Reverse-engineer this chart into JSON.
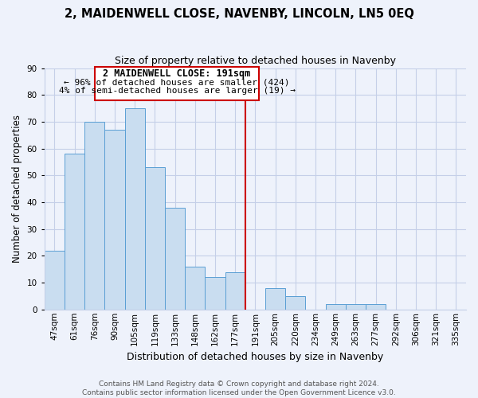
{
  "title": "2, MAIDENWELL CLOSE, NAVENBY, LINCOLN, LN5 0EQ",
  "subtitle": "Size of property relative to detached houses in Navenby",
  "xlabel": "Distribution of detached houses by size in Navenby",
  "ylabel": "Number of detached properties",
  "bar_labels": [
    "47sqm",
    "61sqm",
    "76sqm",
    "90sqm",
    "105sqm",
    "119sqm",
    "133sqm",
    "148sqm",
    "162sqm",
    "177sqm",
    "191sqm",
    "205sqm",
    "220sqm",
    "234sqm",
    "249sqm",
    "263sqm",
    "277sqm",
    "292sqm",
    "306sqm",
    "321sqm",
    "335sqm"
  ],
  "bar_heights": [
    22,
    58,
    70,
    67,
    75,
    53,
    38,
    16,
    12,
    14,
    0,
    8,
    5,
    0,
    2,
    2,
    2,
    0,
    0,
    0,
    0
  ],
  "bar_color": "#c9ddf0",
  "bar_edge_color": "#5a9fd4",
  "highlight_line_color": "#cc0000",
  "highlight_line_index": 10,
  "annotation_title": "2 MAIDENWELL CLOSE: 191sqm",
  "annotation_line1": "← 96% of detached houses are smaller (424)",
  "annotation_line2": "4% of semi-detached houses are larger (19) →",
  "annotation_box_color": "#ffffff",
  "annotation_box_edge": "#cc0000",
  "ylim": [
    0,
    90
  ],
  "yticks": [
    0,
    10,
    20,
    30,
    40,
    50,
    60,
    70,
    80,
    90
  ],
  "footer_line1": "Contains HM Land Registry data © Crown copyright and database right 2024.",
  "footer_line2": "Contains public sector information licensed under the Open Government Licence v3.0.",
  "bg_color": "#eef2fb",
  "grid_color": "#c5cfe8",
  "title_fontsize": 10.5,
  "subtitle_fontsize": 9,
  "ylabel_fontsize": 8.5,
  "xlabel_fontsize": 9,
  "tick_fontsize": 7.5,
  "footer_fontsize": 6.5
}
